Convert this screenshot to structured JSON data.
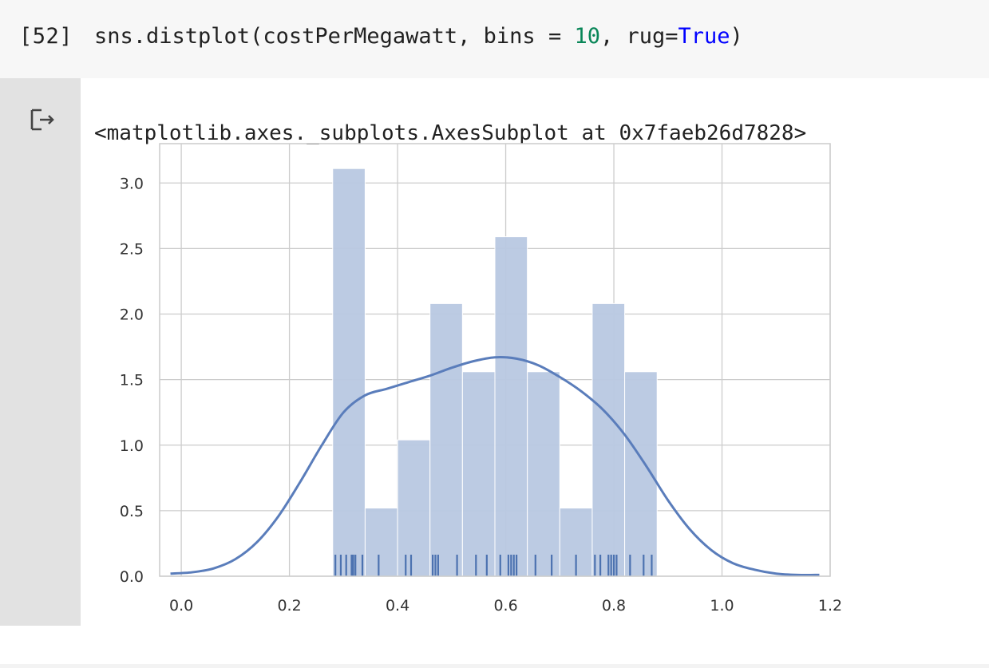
{
  "cell": {
    "execution_count": "[52]",
    "code": {
      "prefix": "sns.distplot(costPerMegawatt, bins = ",
      "bins_value": "10",
      "middle": ", rug=",
      "rug_value": "True",
      "suffix": ")"
    },
    "output_text": "<matplotlib.axes._subplots.AxesSubplot at 0x7faeb26d7828>",
    "output_icon": "output-arrow-icon"
  },
  "colors": {
    "bar_fill": "#b8c8e1",
    "kde_line": "#5a7dbb",
    "rug": "#4c72b0",
    "grid": "#cccccc",
    "number_token": "#098658",
    "keyword_token": "#0000ff"
  },
  "chart_data": {
    "type": "bar",
    "title": "",
    "xlabel": "",
    "ylabel": "",
    "xlim": [
      -0.04,
      1.2
    ],
    "ylim": [
      0,
      3.3
    ],
    "grid": true,
    "x_ticks": [
      "0.0",
      "0.2",
      "0.4",
      "0.6",
      "0.8",
      "1.0",
      "1.2"
    ],
    "y_ticks": [
      "0.0",
      "0.5",
      "1.0",
      "1.5",
      "2.0",
      "2.5",
      "3.0"
    ],
    "histogram": {
      "bin_edges": [
        0.28,
        0.34,
        0.4,
        0.46,
        0.52,
        0.58,
        0.64,
        0.7,
        0.76,
        0.82,
        0.88
      ],
      "densities": [
        3.11,
        0.52,
        1.04,
        2.08,
        1.56,
        2.59,
        1.56,
        0.52,
        2.08,
        1.56
      ]
    },
    "kde": {
      "x": [
        -0.02,
        0.02,
        0.06,
        0.1,
        0.14,
        0.18,
        0.22,
        0.26,
        0.3,
        0.34,
        0.38,
        0.42,
        0.46,
        0.5,
        0.54,
        0.58,
        0.62,
        0.66,
        0.7,
        0.74,
        0.78,
        0.82,
        0.86,
        0.9,
        0.94,
        0.98,
        1.02,
        1.06,
        1.1,
        1.14,
        1.18
      ],
      "y": [
        0.02,
        0.03,
        0.06,
        0.13,
        0.26,
        0.46,
        0.72,
        1.0,
        1.25,
        1.38,
        1.43,
        1.48,
        1.53,
        1.59,
        1.64,
        1.67,
        1.66,
        1.61,
        1.52,
        1.41,
        1.27,
        1.08,
        0.84,
        0.58,
        0.36,
        0.2,
        0.1,
        0.05,
        0.02,
        0.01,
        0.01
      ]
    },
    "rug": [
      0.285,
      0.295,
      0.305,
      0.315,
      0.318,
      0.322,
      0.335,
      0.365,
      0.415,
      0.425,
      0.465,
      0.47,
      0.475,
      0.51,
      0.545,
      0.565,
      0.59,
      0.605,
      0.61,
      0.615,
      0.62,
      0.655,
      0.685,
      0.73,
      0.765,
      0.775,
      0.79,
      0.795,
      0.8,
      0.805,
      0.83,
      0.855,
      0.87
    ]
  }
}
